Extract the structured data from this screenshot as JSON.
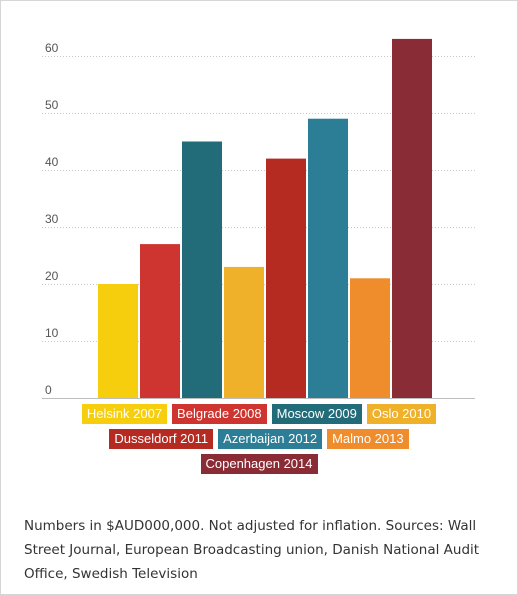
{
  "chart_data": {
    "type": "bar",
    "title": "",
    "xlabel": "",
    "ylabel": "",
    "ylim": [
      0,
      65
    ],
    "yticks": [
      0,
      10,
      20,
      30,
      40,
      50,
      60
    ],
    "grid": true,
    "legend_placement": "bottom",
    "categories": [
      "Helsink 2007",
      "Belgrade 2008",
      "Moscow 2009",
      "Oslo 2010",
      "Dusseldorf 2011",
      "Azerbaijan 2012",
      "Malmo 2013",
      "Copenhagen 2014"
    ],
    "values": [
      20,
      27,
      45,
      23,
      42,
      49,
      21,
      63
    ],
    "colors": [
      "#f7ce0e",
      "#cf3530",
      "#226c7a",
      "#efb02a",
      "#b52b21",
      "#2c7e96",
      "#ef8c2c",
      "#8a2c36"
    ]
  },
  "legend_rows": [
    [
      0,
      1,
      2,
      3
    ],
    [
      4,
      5,
      6
    ],
    [
      7
    ]
  ],
  "note": "Numbers in $AUD000,000. Not adjusted for inflation. Sources: Wall Street Journal, European Broadcasting union, Danish National Audit Office, Swedish Television"
}
